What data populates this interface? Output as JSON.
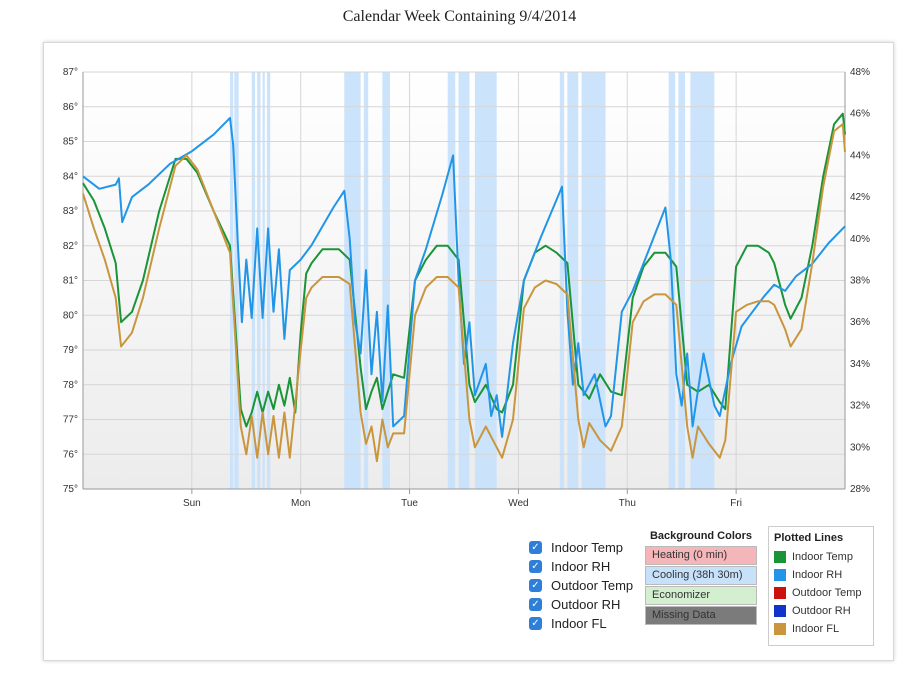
{
  "page": {
    "title": "Calendar Week Containing 9/4/2014"
  },
  "chart_data": {
    "type": "line",
    "title": "Calendar Week Containing 9/4/2014",
    "x_range_days": [
      0,
      7
    ],
    "x_ticks": [
      {
        "day": 1,
        "label": "Sun"
      },
      {
        "day": 2,
        "label": "Mon"
      },
      {
        "day": 3,
        "label": "Tue"
      },
      {
        "day": 4,
        "label": "Wed"
      },
      {
        "day": 5,
        "label": "Thu"
      },
      {
        "day": 6,
        "label": "Fri"
      }
    ],
    "y_left": {
      "unit": "°",
      "range": [
        75,
        87
      ],
      "ticks": [
        "75°",
        "76°",
        "77°",
        "78°",
        "79°",
        "80°",
        "81°",
        "82°",
        "83°",
        "84°",
        "85°",
        "86°",
        "87°"
      ]
    },
    "y_right": {
      "unit": "%",
      "range": [
        28,
        48
      ],
      "ticks": [
        "28%",
        "30%",
        "32%",
        "34%",
        "36%",
        "38%",
        "40%",
        "42%",
        "44%",
        "46%",
        "48%"
      ]
    },
    "grid": true,
    "cooling_periods": [
      [
        1.35,
        1.38
      ],
      [
        1.39,
        1.43
      ],
      [
        1.55,
        1.58
      ],
      [
        1.6,
        1.63
      ],
      [
        1.65,
        1.67
      ],
      [
        1.69,
        1.72
      ],
      [
        2.4,
        2.55
      ],
      [
        2.58,
        2.62
      ],
      [
        2.75,
        2.82
      ],
      [
        3.35,
        3.42
      ],
      [
        3.45,
        3.55
      ],
      [
        3.6,
        3.8
      ],
      [
        4.38,
        4.42
      ],
      [
        4.45,
        4.55
      ],
      [
        4.58,
        4.8
      ],
      [
        5.38,
        5.44
      ],
      [
        5.47,
        5.53
      ],
      [
        5.58,
        5.8
      ]
    ],
    "series": [
      {
        "name": "Indoor Temp",
        "axis": "left",
        "color": "#1a9436",
        "points": [
          [
            0,
            83.8
          ],
          [
            0.1,
            83.3
          ],
          [
            0.2,
            82.5
          ],
          [
            0.3,
            81.5
          ],
          [
            0.35,
            79.8
          ],
          [
            0.45,
            80.1
          ],
          [
            0.55,
            81
          ],
          [
            0.7,
            83
          ],
          [
            0.85,
            84.5
          ],
          [
            0.95,
            84.5
          ],
          [
            1.05,
            84.1
          ],
          [
            1.2,
            83
          ],
          [
            1.35,
            82
          ],
          [
            1.45,
            77.3
          ],
          [
            1.5,
            76.8
          ],
          [
            1.55,
            77.2
          ],
          [
            1.6,
            77.8
          ],
          [
            1.65,
            77.2
          ],
          [
            1.7,
            77.8
          ],
          [
            1.75,
            77.3
          ],
          [
            1.8,
            78
          ],
          [
            1.85,
            77.4
          ],
          [
            1.9,
            78.2
          ],
          [
            1.95,
            77.2
          ],
          [
            2.0,
            79.5
          ],
          [
            2.05,
            81.2
          ],
          [
            2.1,
            81.5
          ],
          [
            2.2,
            81.9
          ],
          [
            2.35,
            81.9
          ],
          [
            2.45,
            81.6
          ],
          [
            2.55,
            78.5
          ],
          [
            2.6,
            77.3
          ],
          [
            2.65,
            77.8
          ],
          [
            2.7,
            78.2
          ],
          [
            2.75,
            77.3
          ],
          [
            2.8,
            77.8
          ],
          [
            2.85,
            78.3
          ],
          [
            2.95,
            78.2
          ],
          [
            3.05,
            81
          ],
          [
            3.15,
            81.6
          ],
          [
            3.25,
            82
          ],
          [
            3.35,
            82
          ],
          [
            3.45,
            81.6
          ],
          [
            3.55,
            78
          ],
          [
            3.6,
            77.5
          ],
          [
            3.7,
            78
          ],
          [
            3.8,
            77.3
          ],
          [
            3.85,
            77.2
          ],
          [
            3.95,
            78
          ],
          [
            4.05,
            81
          ],
          [
            4.15,
            81.8
          ],
          [
            4.25,
            82
          ],
          [
            4.35,
            81.8
          ],
          [
            4.45,
            81.5
          ],
          [
            4.55,
            78
          ],
          [
            4.65,
            77.6
          ],
          [
            4.75,
            78.3
          ],
          [
            4.85,
            77.8
          ],
          [
            4.95,
            77.7
          ],
          [
            5.05,
            80.5
          ],
          [
            5.15,
            81.4
          ],
          [
            5.25,
            81.8
          ],
          [
            5.35,
            81.8
          ],
          [
            5.45,
            81.4
          ],
          [
            5.55,
            78
          ],
          [
            5.65,
            77.8
          ],
          [
            5.75,
            78
          ],
          [
            5.85,
            77.5
          ],
          [
            5.9,
            77.3
          ],
          [
            6.0,
            81.4
          ],
          [
            6.1,
            82
          ],
          [
            6.2,
            82
          ],
          [
            6.3,
            81.8
          ],
          [
            6.35,
            81.5
          ],
          [
            6.45,
            80.3
          ],
          [
            6.5,
            79.9
          ],
          [
            6.6,
            80.5
          ],
          [
            6.7,
            82
          ],
          [
            6.8,
            84
          ],
          [
            6.9,
            85.5
          ],
          [
            6.98,
            85.8
          ],
          [
            7.0,
            85.2
          ]
        ]
      },
      {
        "name": "Indoor RH",
        "axis": "right",
        "color": "#2196e8",
        "points": [
          [
            0,
            43
          ],
          [
            0.15,
            42.4
          ],
          [
            0.3,
            42.6
          ],
          [
            0.33,
            42.9
          ],
          [
            0.36,
            40.8
          ],
          [
            0.45,
            42
          ],
          [
            0.6,
            42.6
          ],
          [
            0.8,
            43.6
          ],
          [
            1.0,
            44.2
          ],
          [
            1.2,
            45
          ],
          [
            1.35,
            45.8
          ],
          [
            1.38,
            44.5
          ],
          [
            1.42,
            40
          ],
          [
            1.46,
            36
          ],
          [
            1.5,
            39
          ],
          [
            1.55,
            36.2
          ],
          [
            1.6,
            40.5
          ],
          [
            1.65,
            36.2
          ],
          [
            1.7,
            40.5
          ],
          [
            1.75,
            36.5
          ],
          [
            1.8,
            39.5
          ],
          [
            1.85,
            35.2
          ],
          [
            1.9,
            38.5
          ],
          [
            2.0,
            39
          ],
          [
            2.1,
            39.7
          ],
          [
            2.2,
            40.6
          ],
          [
            2.3,
            41.5
          ],
          [
            2.4,
            42.3
          ],
          [
            2.45,
            40
          ],
          [
            2.5,
            36
          ],
          [
            2.55,
            34.5
          ],
          [
            2.6,
            38.5
          ],
          [
            2.65,
            33.5
          ],
          [
            2.7,
            36.5
          ],
          [
            2.75,
            32.2
          ],
          [
            2.8,
            36.8
          ],
          [
            2.85,
            31
          ],
          [
            2.95,
            31.5
          ],
          [
            3.05,
            38
          ],
          [
            3.15,
            39.5
          ],
          [
            3.3,
            42.1
          ],
          [
            3.4,
            44
          ],
          [
            3.45,
            38
          ],
          [
            3.5,
            34
          ],
          [
            3.55,
            36
          ],
          [
            3.6,
            32.5
          ],
          [
            3.7,
            34
          ],
          [
            3.75,
            31.5
          ],
          [
            3.8,
            32.5
          ],
          [
            3.85,
            30.5
          ],
          [
            3.95,
            35
          ],
          [
            4.05,
            38
          ],
          [
            4.2,
            40
          ],
          [
            4.4,
            42.5
          ],
          [
            4.45,
            36.5
          ],
          [
            4.5,
            33
          ],
          [
            4.55,
            35
          ],
          [
            4.6,
            32.5
          ],
          [
            4.7,
            33.5
          ],
          [
            4.8,
            31
          ],
          [
            4.85,
            31.5
          ],
          [
            4.95,
            36.5
          ],
          [
            5.05,
            37.5
          ],
          [
            5.2,
            39.5
          ],
          [
            5.35,
            41.5
          ],
          [
            5.4,
            39
          ],
          [
            5.45,
            33.5
          ],
          [
            5.5,
            32
          ],
          [
            5.55,
            34.5
          ],
          [
            5.6,
            31
          ],
          [
            5.7,
            34.5
          ],
          [
            5.8,
            32
          ],
          [
            5.85,
            31.5
          ],
          [
            5.95,
            34
          ],
          [
            6.05,
            35.8
          ],
          [
            6.15,
            36.5
          ],
          [
            6.25,
            37.2
          ],
          [
            6.35,
            37.8
          ],
          [
            6.45,
            37.5
          ],
          [
            6.55,
            38.2
          ],
          [
            6.7,
            38.8
          ],
          [
            6.85,
            39.8
          ],
          [
            7.0,
            40.6
          ]
        ]
      },
      {
        "name": "Indoor FL",
        "axis": "left",
        "color": "#c9963f",
        "points": [
          [
            0,
            83.5
          ],
          [
            0.1,
            82.5
          ],
          [
            0.2,
            81.6
          ],
          [
            0.3,
            80.5
          ],
          [
            0.35,
            79.1
          ],
          [
            0.45,
            79.5
          ],
          [
            0.55,
            80.5
          ],
          [
            0.7,
            82.5
          ],
          [
            0.85,
            84.3
          ],
          [
            0.95,
            84.6
          ],
          [
            1.05,
            84.2
          ],
          [
            1.2,
            83
          ],
          [
            1.35,
            81.8
          ],
          [
            1.45,
            76.8
          ],
          [
            1.5,
            76
          ],
          [
            1.55,
            77.1
          ],
          [
            1.6,
            75.9
          ],
          [
            1.65,
            77.2
          ],
          [
            1.7,
            76
          ],
          [
            1.75,
            77.1
          ],
          [
            1.8,
            75.9
          ],
          [
            1.85,
            77.2
          ],
          [
            1.9,
            75.9
          ],
          [
            2.0,
            79
          ],
          [
            2.05,
            80.5
          ],
          [
            2.1,
            80.8
          ],
          [
            2.2,
            81.1
          ],
          [
            2.35,
            81.1
          ],
          [
            2.45,
            80.9
          ],
          [
            2.55,
            77.2
          ],
          [
            2.6,
            76.3
          ],
          [
            2.65,
            76.8
          ],
          [
            2.7,
            75.8
          ],
          [
            2.75,
            77
          ],
          [
            2.8,
            76.2
          ],
          [
            2.85,
            76.6
          ],
          [
            2.95,
            76.6
          ],
          [
            3.05,
            80
          ],
          [
            3.15,
            80.8
          ],
          [
            3.25,
            81.1
          ],
          [
            3.35,
            81.1
          ],
          [
            3.45,
            80.8
          ],
          [
            3.55,
            77
          ],
          [
            3.6,
            76.2
          ],
          [
            3.7,
            76.8
          ],
          [
            3.8,
            76.2
          ],
          [
            3.85,
            75.9
          ],
          [
            3.95,
            77
          ],
          [
            4.05,
            80.2
          ],
          [
            4.15,
            80.8
          ],
          [
            4.25,
            81
          ],
          [
            4.35,
            80.9
          ],
          [
            4.45,
            80.6
          ],
          [
            4.55,
            77
          ],
          [
            4.6,
            76.2
          ],
          [
            4.65,
            76.9
          ],
          [
            4.75,
            76.4
          ],
          [
            4.85,
            76.1
          ],
          [
            4.95,
            76.8
          ],
          [
            5.05,
            79.8
          ],
          [
            5.15,
            80.4
          ],
          [
            5.25,
            80.6
          ],
          [
            5.35,
            80.6
          ],
          [
            5.45,
            80.3
          ],
          [
            5.55,
            76.8
          ],
          [
            5.6,
            75.9
          ],
          [
            5.65,
            76.8
          ],
          [
            5.75,
            76.3
          ],
          [
            5.85,
            75.9
          ],
          [
            5.9,
            76.4
          ],
          [
            6.0,
            80.1
          ],
          [
            6.1,
            80.3
          ],
          [
            6.2,
            80.4
          ],
          [
            6.3,
            80.4
          ],
          [
            6.35,
            80.3
          ],
          [
            6.45,
            79.6
          ],
          [
            6.5,
            79.1
          ],
          [
            6.6,
            79.6
          ],
          [
            6.7,
            81.5
          ],
          [
            6.8,
            83.7
          ],
          [
            6.9,
            85.3
          ],
          [
            6.98,
            85.5
          ],
          [
            7.0,
            84.7
          ]
        ]
      }
    ]
  },
  "checkboxes": [
    {
      "label": "Indoor Temp",
      "checked": true
    },
    {
      "label": "Indoor RH",
      "checked": true
    },
    {
      "label": "Outdoor Temp",
      "checked": true
    },
    {
      "label": "Outdoor RH",
      "checked": true
    },
    {
      "label": "Indoor FL",
      "checked": true
    }
  ],
  "background_colors": {
    "title": "Background Colors",
    "items": [
      {
        "label": "Heating (0 min)",
        "color": "#f4b6b8"
      },
      {
        "label": "Cooling (38h 30m)",
        "color": "#c8e1fb"
      },
      {
        "label": "Economizer",
        "color": "#d3efcf"
      },
      {
        "label": "Missing Data",
        "color": "#7b7b7b"
      }
    ]
  },
  "plotted_lines": {
    "title": "Plotted Lines",
    "items": [
      {
        "label": "Indoor Temp",
        "color": "#1a9436"
      },
      {
        "label": "Indoor RH",
        "color": "#2196e8"
      },
      {
        "label": "Outdoor Temp",
        "color": "#cc1111"
      },
      {
        "label": "Outdoor RH",
        "color": "#1133cc"
      },
      {
        "label": "Indoor FL",
        "color": "#c9963f"
      }
    ]
  }
}
